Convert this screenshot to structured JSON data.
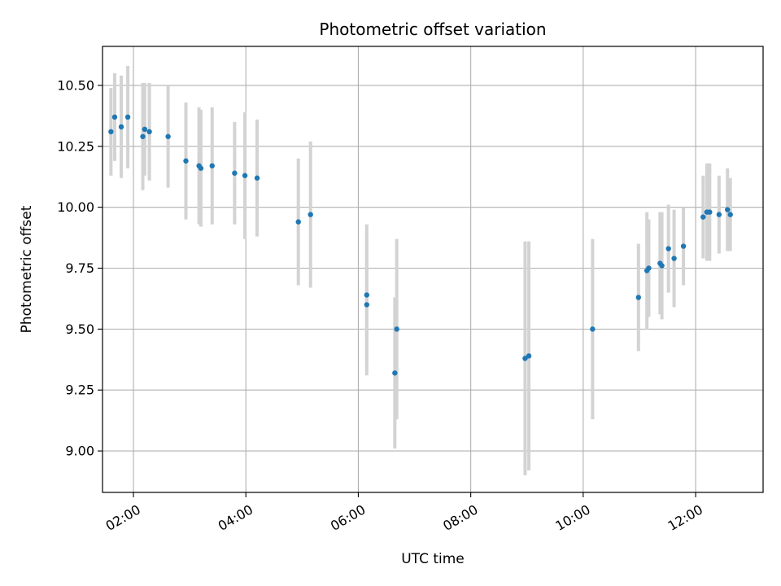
{
  "chart_data": {
    "type": "scatter",
    "title": "Photometric offset variation",
    "xlabel": "UTC time",
    "ylabel": "Photometric offset",
    "xlim": [
      "01:27",
      "13:12"
    ],
    "ylim": [
      8.83,
      10.66
    ],
    "x_ticks": [
      "02:00",
      "04:00",
      "06:00",
      "08:00",
      "10:00",
      "12:00"
    ],
    "y_ticks": [
      "9.00",
      "9.25",
      "9.50",
      "9.75",
      "10.00",
      "10.25",
      "10.50"
    ],
    "grid": true,
    "legend": "none",
    "colors": {
      "points": "#1f77b4",
      "error_bars": "#d3d3d3",
      "grid": "#b0b0b0"
    },
    "points": [
      {
        "x": "01:36",
        "y": 10.31,
        "yerr": 0.18
      },
      {
        "x": "01:40",
        "y": 10.37,
        "yerr": 0.18
      },
      {
        "x": "01:47",
        "y": 10.33,
        "yerr": 0.21
      },
      {
        "x": "01:54",
        "y": 10.37,
        "yerr": 0.21
      },
      {
        "x": "02:10",
        "y": 10.29,
        "yerr": 0.22
      },
      {
        "x": "02:12",
        "y": 10.32,
        "yerr": 0.19
      },
      {
        "x": "02:17",
        "y": 10.31,
        "yerr": 0.2
      },
      {
        "x": "02:37",
        "y": 10.29,
        "yerr": 0.21
      },
      {
        "x": "02:56",
        "y": 10.19,
        "yerr": 0.24
      },
      {
        "x": "03:10",
        "y": 10.17,
        "yerr": 0.24
      },
      {
        "x": "03:12",
        "y": 10.16,
        "yerr": 0.24
      },
      {
        "x": "03:24",
        "y": 10.17,
        "yerr": 0.24
      },
      {
        "x": "03:48",
        "y": 10.14,
        "yerr": 0.21
      },
      {
        "x": "03:59",
        "y": 10.13,
        "yerr": 0.26
      },
      {
        "x": "04:12",
        "y": 10.12,
        "yerr": 0.24
      },
      {
        "x": "04:56",
        "y": 9.94,
        "yerr": 0.26
      },
      {
        "x": "05:09",
        "y": 9.97,
        "yerr": 0.3
      },
      {
        "x": "06:09",
        "y": 9.64,
        "yerr": 0.29
      },
      {
        "x": "06:09",
        "y": 9.6,
        "yerr": 0.29
      },
      {
        "x": "06:39",
        "y": 9.32,
        "yerr": 0.31
      },
      {
        "x": "06:41",
        "y": 9.5,
        "yerr": 0.37
      },
      {
        "x": "08:58",
        "y": 9.38,
        "yerr": 0.48
      },
      {
        "x": "09:02",
        "y": 9.39,
        "yerr": 0.47
      },
      {
        "x": "10:10",
        "y": 9.5,
        "yerr": 0.37
      },
      {
        "x": "10:59",
        "y": 9.63,
        "yerr": 0.22
      },
      {
        "x": "11:08",
        "y": 9.74,
        "yerr": 0.24
      },
      {
        "x": "11:10",
        "y": 9.75,
        "yerr": 0.2
      },
      {
        "x": "11:22",
        "y": 9.77,
        "yerr": 0.21
      },
      {
        "x": "11:24",
        "y": 9.76,
        "yerr": 0.22
      },
      {
        "x": "11:31",
        "y": 9.83,
        "yerr": 0.18
      },
      {
        "x": "11:37",
        "y": 9.79,
        "yerr": 0.2
      },
      {
        "x": "11:47",
        "y": 9.84,
        "yerr": 0.16
      },
      {
        "x": "12:08",
        "y": 9.96,
        "yerr": 0.17
      },
      {
        "x": "12:12",
        "y": 9.98,
        "yerr": 0.2
      },
      {
        "x": "12:15",
        "y": 9.98,
        "yerr": 0.2
      },
      {
        "x": "12:25",
        "y": 9.97,
        "yerr": 0.16
      },
      {
        "x": "12:34",
        "y": 9.99,
        "yerr": 0.17
      },
      {
        "x": "12:37",
        "y": 9.97,
        "yerr": 0.15
      }
    ]
  }
}
